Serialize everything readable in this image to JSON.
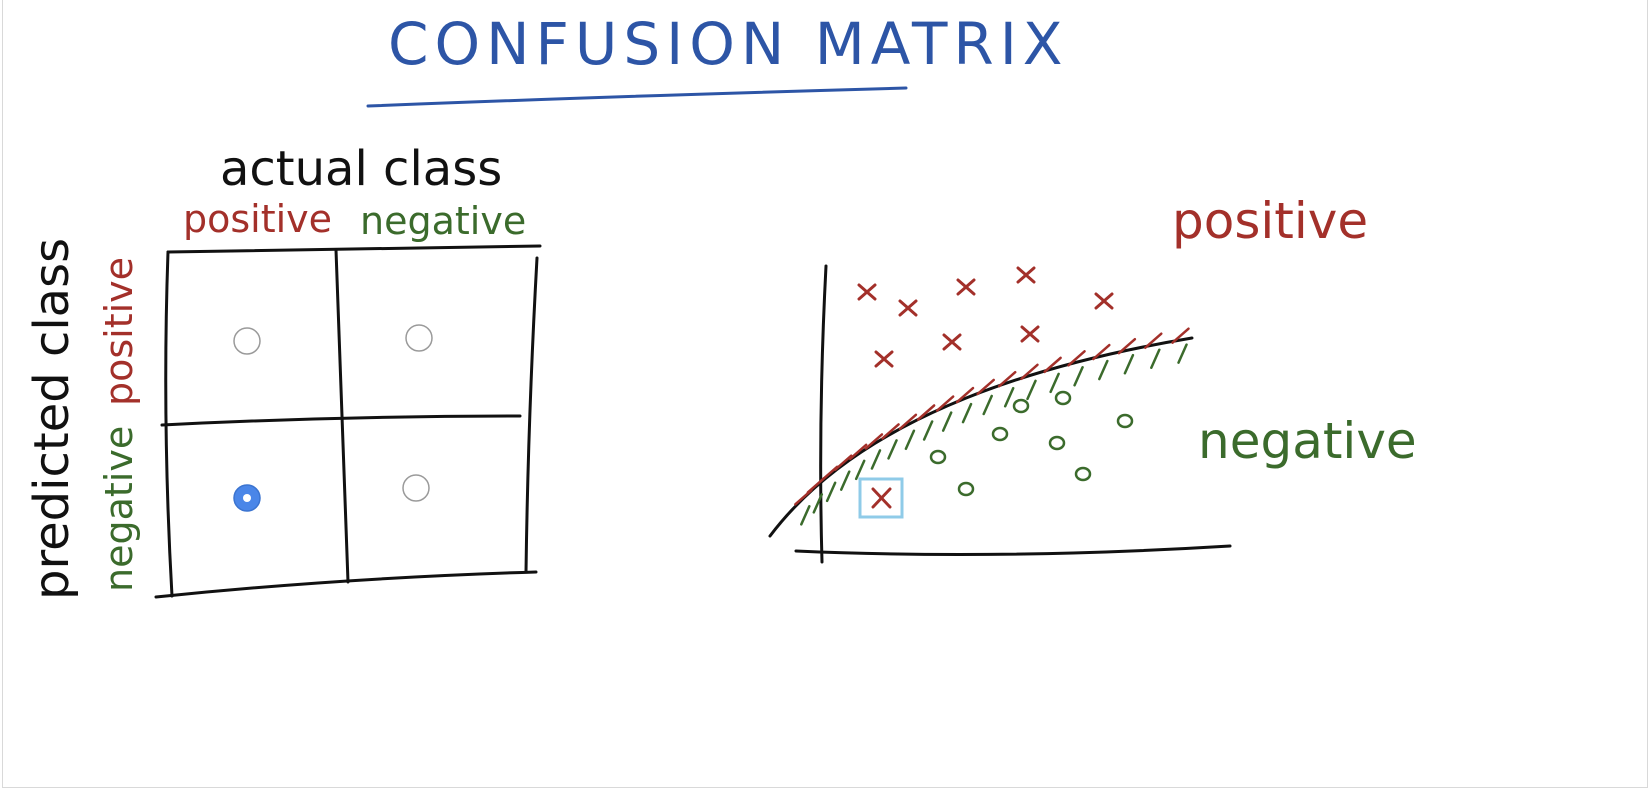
{
  "title": "CONFUSION MATRIX",
  "matrix": {
    "column_header": "actual class",
    "row_header": "predicted class",
    "columns": [
      "positive",
      "negative"
    ],
    "rows": [
      "positive",
      "negative"
    ],
    "cells": [
      {
        "row": "positive",
        "col": "positive",
        "selected": false
      },
      {
        "row": "positive",
        "col": "negative",
        "selected": false
      },
      {
        "row": "negative",
        "col": "positive",
        "selected": true
      },
      {
        "row": "negative",
        "col": "negative",
        "selected": false
      }
    ]
  },
  "plot": {
    "region_positive": "positive",
    "region_negative": "negative",
    "colors": {
      "positive": "#a3302a",
      "negative": "#3b6b2c",
      "highlight": "#8fcbe8",
      "title": "#2d55a6",
      "radio_selected": "#4a86e8"
    }
  }
}
